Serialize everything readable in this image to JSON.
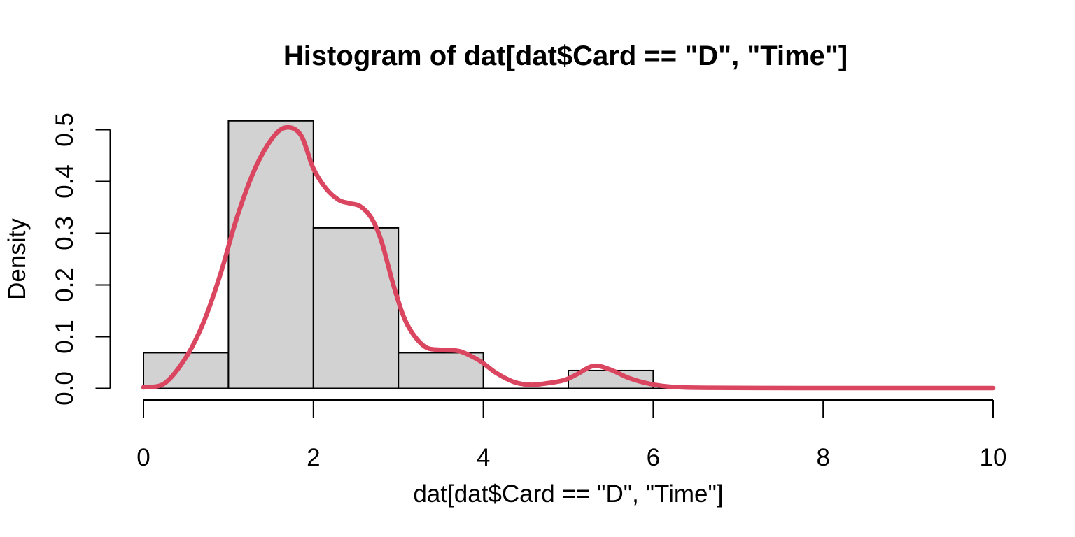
{
  "chart_data": {
    "type": "bar",
    "subtype": "histogram-with-density-overlay",
    "title": "Histogram of dat[dat$Card == \"D\", \"Time\"]",
    "xlabel": "dat[dat$Card == \"D\", \"Time\"]",
    "ylabel": "Density",
    "xlim": [
      0,
      10
    ],
    "ylim": [
      0,
      0.5
    ],
    "grid": "off",
    "legend": "none",
    "x_ticks": [
      "0",
      "2",
      "4",
      "6",
      "8",
      "10"
    ],
    "y_ticks": [
      "0.0",
      "0.1",
      "0.2",
      "0.3",
      "0.4",
      "0.5"
    ],
    "bars": [
      {
        "bin_start": 0,
        "bin_end": 1,
        "density": 0.069
      },
      {
        "bin_start": 1,
        "bin_end": 2,
        "density": 0.5172
      },
      {
        "bin_start": 2,
        "bin_end": 3,
        "density": 0.3103
      },
      {
        "bin_start": 3,
        "bin_end": 4,
        "density": 0.069
      },
      {
        "bin_start": 4,
        "bin_end": 5,
        "density": 0
      },
      {
        "bin_start": 5,
        "bin_end": 6,
        "density": 0.0345
      },
      {
        "bin_start": 6,
        "bin_end": 7,
        "density": 0
      },
      {
        "bin_start": 7,
        "bin_end": 8,
        "density": 0
      },
      {
        "bin_start": 8,
        "bin_end": 9,
        "density": 0
      },
      {
        "bin_start": 9,
        "bin_end": 10,
        "density": 0
      }
    ],
    "density_curve": [
      [
        0.0,
        0.002
      ],
      [
        0.25,
        0.01
      ],
      [
        0.5,
        0.06
      ],
      [
        0.7,
        0.125
      ],
      [
        0.9,
        0.218
      ],
      [
        1.1,
        0.33
      ],
      [
        1.3,
        0.42
      ],
      [
        1.5,
        0.48
      ],
      [
        1.67,
        0.504
      ],
      [
        1.85,
        0.49
      ],
      [
        2.0,
        0.425
      ],
      [
        2.15,
        0.386
      ],
      [
        2.3,
        0.364
      ],
      [
        2.42,
        0.358
      ],
      [
        2.55,
        0.352
      ],
      [
        2.68,
        0.33
      ],
      [
        2.8,
        0.285
      ],
      [
        2.95,
        0.195
      ],
      [
        3.1,
        0.125
      ],
      [
        3.3,
        0.082
      ],
      [
        3.5,
        0.0745
      ],
      [
        3.72,
        0.072
      ],
      [
        3.95,
        0.054
      ],
      [
        4.15,
        0.03
      ],
      [
        4.35,
        0.013
      ],
      [
        4.55,
        0.007
      ],
      [
        4.75,
        0.01
      ],
      [
        4.95,
        0.016
      ],
      [
        5.1,
        0.027
      ],
      [
        5.3,
        0.0435
      ],
      [
        5.5,
        0.036
      ],
      [
        5.7,
        0.021
      ],
      [
        5.9,
        0.011
      ],
      [
        6.1,
        0.005
      ],
      [
        6.35,
        0.002
      ],
      [
        6.7,
        0.0012
      ],
      [
        7.2,
        0.0008
      ],
      [
        8.0,
        0.0007
      ],
      [
        9.0,
        0.0007
      ],
      [
        10.0,
        0.0007
      ]
    ],
    "colors": {
      "background": "#ffffff",
      "bar_fill": "#d2d2d2",
      "bar_border": "#000000",
      "density_line": "#da455f",
      "axis": "#000000",
      "text": "#000000"
    }
  }
}
